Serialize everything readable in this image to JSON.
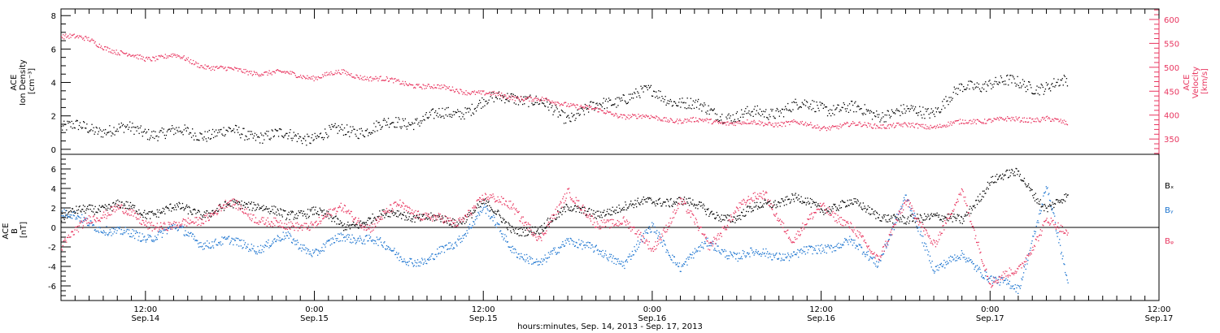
{
  "chart_data": [
    {
      "type": "scatter",
      "panel": "top",
      "ylabel_left_lines": [
        "ACE",
        "Ion Density",
        "[cm⁻³]"
      ],
      "ylabel_right_lines": [
        "ACE",
        "Velocity",
        "[km/s]"
      ],
      "ylim_left": [
        -0.3,
        8.4
      ],
      "ylim_right": [
        318,
        622
      ],
      "yticks_left": [
        "0",
        "2",
        "4",
        "6",
        "8"
      ],
      "yticks_left_values": [
        0,
        2,
        4,
        6,
        8
      ],
      "yticks_right": [
        "350",
        "400",
        "450",
        "500",
        "550",
        "600"
      ],
      "yticks_right_values": [
        350,
        400,
        450,
        500,
        550,
        600
      ],
      "series": [
        {
          "axis": "left",
          "color": "#000000",
          "x_hours": [
            0,
            2,
            4,
            6,
            8,
            10,
            12,
            14,
            16,
            18,
            20,
            22,
            24,
            26,
            28,
            30,
            32,
            34,
            36,
            38,
            40,
            42,
            44,
            46,
            48,
            50,
            52,
            54,
            56,
            58,
            60,
            62,
            64,
            66,
            68,
            70,
            71.5
          ],
          "values": [
            1.3,
            1.3,
            1.2,
            1.1,
            1.0,
            1.0,
            1.0,
            0.9,
            0.8,
            0.8,
            1.1,
            1.3,
            1.6,
            1.9,
            2.2,
            2.8,
            3.3,
            2.7,
            2.0,
            2.5,
            3.2,
            3.4,
            2.9,
            2.3,
            2.0,
            2.2,
            2.6,
            2.6,
            2.4,
            2.2,
            2.2,
            2.4,
            3.6,
            4.1,
            3.9,
            3.8,
            4.0
          ]
        },
        {
          "axis": "right",
          "color": "#e8355f",
          "x_hours": [
            0,
            2,
            4,
            6,
            8,
            10,
            12,
            14,
            16,
            18,
            20,
            22,
            24,
            26,
            28,
            30,
            32,
            34,
            36,
            38,
            40,
            42,
            44,
            46,
            48,
            50,
            52,
            54,
            56,
            58,
            60,
            62,
            64,
            66,
            68,
            70,
            71.5
          ],
          "values": [
            565,
            560,
            530,
            520,
            525,
            505,
            495,
            490,
            488,
            480,
            490,
            478,
            470,
            460,
            455,
            445,
            440,
            432,
            425,
            410,
            400,
            395,
            390,
            388,
            385,
            383,
            385,
            375,
            380,
            380,
            378,
            378,
            385,
            392,
            390,
            395,
            380
          ]
        }
      ]
    },
    {
      "type": "scatter",
      "panel": "bottom",
      "ylabel_lines": [
        "ACE",
        "B",
        "[nT]"
      ],
      "ylim": [
        -7.5,
        7.5
      ],
      "yticks": [
        "-6",
        "-4",
        "-2",
        "0",
        "2",
        "4",
        "6"
      ],
      "yticks_values": [
        -6,
        -4,
        -2,
        0,
        2,
        4,
        6
      ],
      "legend": [
        "Bₓ",
        "Bᵧ",
        "Bᵩ"
      ],
      "legend_position": "right",
      "series": [
        {
          "color": "#000000",
          "x_hours": [
            0,
            2,
            4,
            6,
            8,
            10,
            12,
            14,
            16,
            18,
            20,
            22,
            24,
            26,
            28,
            30,
            32,
            34,
            36,
            38,
            40,
            42,
            44,
            46,
            48,
            50,
            52,
            54,
            56,
            58,
            60,
            62,
            64,
            66,
            68,
            70,
            71.5
          ],
          "values": [
            1.0,
            2.0,
            2.3,
            1.5,
            2.0,
            1.5,
            2.2,
            2.5,
            1.0,
            2.0,
            0.0,
            1.0,
            1.5,
            1.0,
            0.5,
            2.5,
            0.0,
            -0.5,
            2.5,
            1.0,
            2.5,
            2.5,
            3.0,
            1.5,
            1.0,
            2.5,
            3.0,
            2.0,
            2.5,
            1.5,
            0.5,
            1.5,
            0.5,
            5.0,
            5.5,
            2.0,
            3.0
          ]
        },
        {
          "color": "#1a73cf",
          "x_hours": [
            0,
            2,
            4,
            6,
            8,
            10,
            12,
            14,
            16,
            18,
            20,
            22,
            24,
            26,
            28,
            30,
            32,
            34,
            36,
            38,
            40,
            42,
            44,
            46,
            48,
            50,
            52,
            54,
            56,
            58,
            60,
            62,
            64,
            66,
            68,
            70,
            71.5
          ],
          "values": [
            1.5,
            0.5,
            -0.5,
            -1.0,
            0.0,
            -1.5,
            -1.5,
            -2.0,
            -1.0,
            -2.5,
            -1.0,
            -1.0,
            -3.0,
            -3.5,
            -1.5,
            2.0,
            -2.0,
            -4.0,
            -1.0,
            -2.5,
            -3.5,
            0.0,
            -4.0,
            -1.5,
            -3.0,
            -2.5,
            -3.0,
            -2.0,
            -1.5,
            -3.5,
            3.0,
            -4.0,
            -3.0,
            -5.0,
            -6.5,
            4.5,
            -6.0
          ]
        },
        {
          "color": "#e8355f",
          "x_hours": [
            0,
            2,
            4,
            6,
            8,
            10,
            12,
            14,
            16,
            18,
            20,
            22,
            24,
            26,
            28,
            30,
            32,
            34,
            36,
            38,
            40,
            42,
            44,
            46,
            48,
            50,
            52,
            54,
            56,
            58,
            60,
            62,
            64,
            66,
            68,
            70,
            71.5
          ],
          "values": [
            -2.0,
            1.0,
            2.0,
            0.5,
            0.0,
            1.0,
            2.5,
            1.0,
            0.0,
            0.5,
            2.0,
            0.0,
            2.5,
            1.0,
            0.5,
            3.0,
            2.5,
            -1.5,
            4.0,
            0.0,
            1.0,
            -2.5,
            3.0,
            -2.0,
            2.0,
            3.5,
            -1.5,
            2.5,
            0.0,
            -3.0,
            2.5,
            -1.5,
            3.5,
            -5.5,
            -4.5,
            1.0,
            -1.0
          ]
        }
      ]
    }
  ],
  "x_axis": {
    "xlim_hours": [
      0,
      78
    ],
    "tick_hours": [
      6,
      18,
      30,
      42,
      54,
      66,
      78
    ],
    "tick_time_labels": [
      "12:00",
      "0:00",
      "12:00",
      "0:00",
      "12:00",
      "0:00",
      "12:00"
    ],
    "tick_date_labels": [
      "Sep.14",
      "Sep.15",
      "Sep.15",
      "Sep.16",
      "Sep.16",
      "Sep.17",
      "Sep.17"
    ],
    "xlabel": "hours:minutes, Sep. 14, 2013 - Sep. 17, 2013"
  },
  "colors": {
    "black": "#000000",
    "red": "#e8355f",
    "blue": "#1a73cf"
  }
}
